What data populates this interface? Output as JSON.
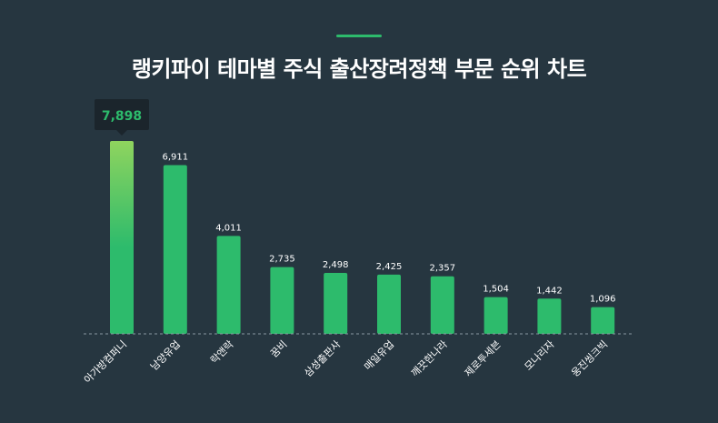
{
  "header": {
    "title": "랭키파이 테마별 주식 출산장려정책 부문 순위 차트"
  },
  "colors": {
    "background": "#263640",
    "bar": "#2dbb6c",
    "top_bar_gradient_start": "#8fd45e",
    "accent": "#2dbb6c",
    "label": "#ffffff",
    "tooltip_bg": "#1b252c",
    "tooltip_text": "#2dbb6c"
  },
  "chart_data": {
    "type": "bar",
    "title": "랭키파이 테마별 주식 출산장려정책 부문 순위 차트",
    "xlabel": "",
    "ylabel": "",
    "ylim": [
      0,
      7898
    ],
    "grid": false,
    "legend": "none",
    "categories": [
      "아가방컴퍼니",
      "남양유업",
      "락앤락",
      "꿈비",
      "삼성출판사",
      "매일유업",
      "깨끗한나라",
      "제로투세븐",
      "모나리자",
      "웅진씽크빅"
    ],
    "values": [
      7898,
      6911,
      4011,
      2735,
      2498,
      2425,
      2357,
      1504,
      1442,
      1096
    ],
    "value_labels": [
      "7,898",
      "6,911",
      "4,011",
      "2,735",
      "2,498",
      "2,425",
      "2,357",
      "1,504",
      "1,442",
      "1,096"
    ],
    "highlight_index": 0
  }
}
